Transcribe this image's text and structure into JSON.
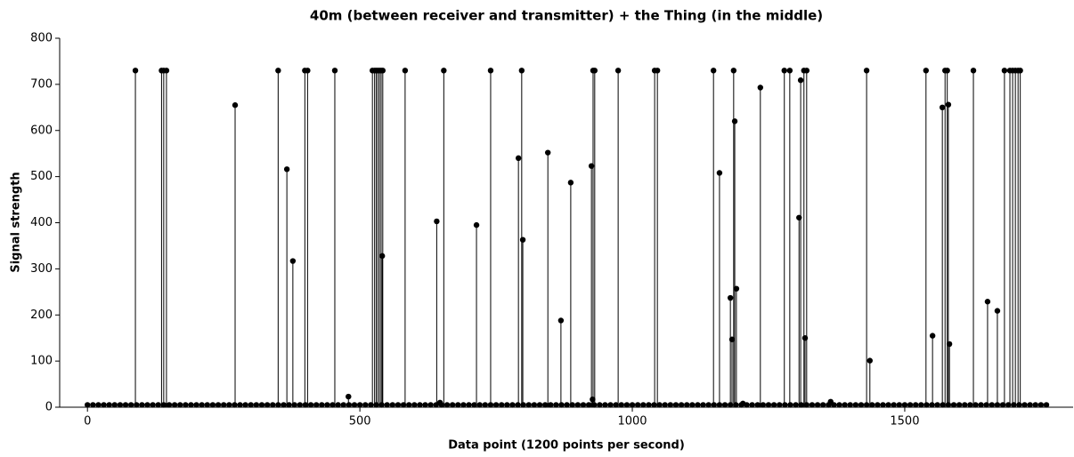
{
  "chart_data": {
    "type": "stem",
    "title": "40m (between receiver and transmitter) + the Thing (in the middle)",
    "xlabel": "Data point (1200 points per second)",
    "ylabel": "Signal strength",
    "xlim": [
      -51,
      1809
    ],
    "ylim": [
      0,
      800
    ],
    "xticks": [
      0,
      500,
      1000,
      1500
    ],
    "yticks": [
      0,
      100,
      200,
      300,
      400,
      500,
      600,
      700,
      800
    ],
    "series": [
      {
        "color": "#000000",
        "x": [
          88,
          136,
          140,
          145,
          271,
          350,
          366,
          377,
          399,
          404,
          454,
          479,
          523,
          527,
          530,
          533,
          536,
          539,
          541,
          542,
          583,
          641,
          647,
          654,
          714,
          740,
          791,
          797,
          799,
          845,
          869,
          887,
          925,
          927,
          928,
          931,
          974,
          1041,
          1046,
          1149,
          1160,
          1180,
          1183,
          1186,
          1188,
          1191,
          1203,
          1235,
          1279,
          1289,
          1306,
          1309,
          1315,
          1317,
          1320,
          1364,
          1430,
          1436,
          1539,
          1551,
          1569,
          1574,
          1578,
          1580,
          1582,
          1626,
          1652,
          1670,
          1683,
          1693,
          1698,
          1703,
          1708,
          1712
        ],
        "values": [
          730,
          730,
          730,
          730,
          655,
          730,
          516,
          317,
          730,
          730,
          730,
          23,
          730,
          730,
          730,
          730,
          730,
          730,
          328,
          730,
          730,
          403,
          10,
          730,
          395,
          730,
          540,
          730,
          363,
          552,
          188,
          487,
          523,
          17,
          730,
          730,
          730,
          730,
          730,
          730,
          508,
          237,
          147,
          730,
          620,
          257,
          8,
          693,
          730,
          730,
          411,
          709,
          730,
          150,
          730,
          12,
          730,
          101,
          730,
          155,
          650,
          730,
          730,
          656,
          137,
          730,
          229,
          209,
          730,
          730,
          730,
          730,
          730,
          730
        ]
      },
      {
        "color": "#000000",
        "x": [
          0,
          10,
          20,
          30,
          40,
          50,
          60,
          70,
          80,
          90,
          100,
          110,
          120,
          130,
          140,
          150,
          160,
          170,
          180,
          190,
          200,
          210,
          220,
          230,
          240,
          250,
          260,
          270,
          280,
          290,
          300,
          310,
          320,
          330,
          340,
          350,
          360,
          370,
          380,
          390,
          400,
          410,
          420,
          430,
          440,
          450,
          460,
          470,
          480,
          490,
          500,
          510,
          520,
          530,
          540,
          550,
          560,
          570,
          580,
          590,
          600,
          610,
          620,
          630,
          640,
          650,
          660,
          670,
          680,
          690,
          700,
          710,
          720,
          730,
          740,
          750,
          760,
          770,
          780,
          790,
          800,
          810,
          820,
          830,
          840,
          850,
          860,
          870,
          880,
          890,
          900,
          910,
          920,
          930,
          940,
          950,
          960,
          970,
          980,
          990,
          1000,
          1010,
          1020,
          1030,
          1040,
          1050,
          1060,
          1070,
          1080,
          1090,
          1100,
          1110,
          1120,
          1130,
          1140,
          1150,
          1160,
          1170,
          1180,
          1190,
          1200,
          1210,
          1220,
          1230,
          1240,
          1250,
          1260,
          1270,
          1280,
          1290,
          1300,
          1310,
          1320,
          1330,
          1340,
          1350,
          1360,
          1370,
          1380,
          1390,
          1400,
          1410,
          1420,
          1430,
          1440,
          1450,
          1460,
          1470,
          1480,
          1490,
          1500,
          1510,
          1520,
          1530,
          1540,
          1550,
          1560,
          1570,
          1580,
          1590,
          1600,
          1610,
          1620,
          1630,
          1640,
          1650,
          1660,
          1670,
          1680,
          1690,
          1700,
          1710,
          1720,
          1730,
          1740,
          1750,
          1760
        ],
        "values": [
          5,
          5,
          5,
          5,
          5,
          5,
          5,
          5,
          5,
          5,
          5,
          5,
          5,
          5,
          5,
          5,
          5,
          5,
          5,
          5,
          5,
          5,
          5,
          5,
          5,
          5,
          5,
          5,
          5,
          5,
          5,
          5,
          5,
          5,
          5,
          5,
          5,
          5,
          5,
          5,
          5,
          5,
          5,
          5,
          5,
          5,
          5,
          5,
          5,
          5,
          5,
          5,
          5,
          5,
          5,
          5,
          5,
          5,
          5,
          5,
          5,
          5,
          5,
          5,
          5,
          5,
          5,
          5,
          5,
          5,
          5,
          5,
          5,
          5,
          5,
          5,
          5,
          5,
          5,
          5,
          5,
          5,
          5,
          5,
          5,
          5,
          5,
          5,
          5,
          5,
          5,
          5,
          5,
          5,
          5,
          5,
          5,
          5,
          5,
          5,
          5,
          5,
          5,
          5,
          5,
          5,
          5,
          5,
          5,
          5,
          5,
          5,
          5,
          5,
          5,
          5,
          5,
          5,
          5,
          5,
          5,
          5,
          5,
          5,
          5,
          5,
          5,
          5,
          5,
          5,
          5,
          5,
          5,
          5,
          5,
          5,
          5,
          5,
          5,
          5,
          5,
          5,
          5,
          5,
          5,
          5,
          5,
          5,
          5,
          5,
          5,
          5,
          5,
          5,
          5,
          5,
          5,
          5,
          5,
          5,
          5,
          5,
          5,
          5,
          5,
          5,
          5,
          5,
          5,
          5,
          5,
          5,
          5,
          5,
          5,
          5,
          5
        ]
      }
    ]
  }
}
